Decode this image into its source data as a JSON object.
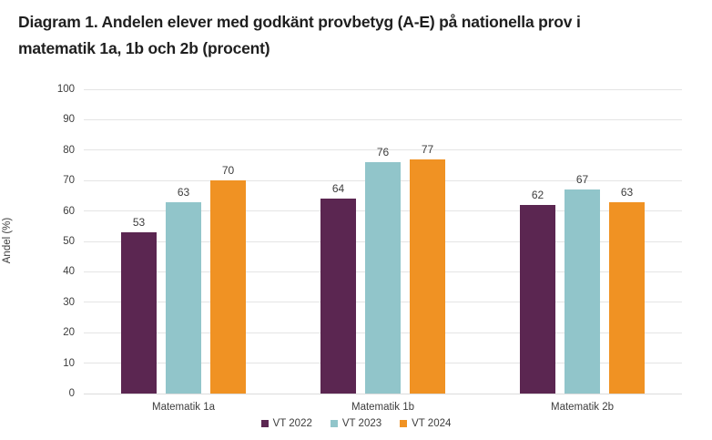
{
  "title": {
    "line1": "Diagram 1. Andelen elever med godkänt provbetyg (A-E) på nationella prov i",
    "line2": "matematik 1a, 1b och 2b (procent)"
  },
  "chart_data": {
    "type": "bar",
    "title": "Diagram 1. Andelen elever med godkänt provbetyg (A-E) på nationella prov i matematik 1a, 1b och 2b (procent)",
    "categories": [
      "Matematik 1a",
      "Matematik 1b",
      "Matematik 2b"
    ],
    "series": [
      {
        "name": "VT 2022",
        "color": "#5b2651",
        "values": [
          53,
          64,
          62
        ]
      },
      {
        "name": "VT 2023",
        "color": "#91c5ca",
        "values": [
          63,
          76,
          67
        ]
      },
      {
        "name": "VT 2024",
        "color": "#f09223",
        "values": [
          70,
          77,
          63
        ]
      }
    ],
    "xlabel": "",
    "ylabel": "Andel (%)",
    "ylim": [
      0,
      100
    ],
    "ytick_step": 10,
    "ytick_labels": [
      "0",
      "10",
      "20",
      "30",
      "40",
      "50",
      "60",
      "70",
      "80",
      "90",
      "100"
    ],
    "grid": true,
    "legend_position": "bottom",
    "value_labels": true
  },
  "colors": {
    "background": "#ffffff",
    "gridline": "#e4e4e4",
    "axis_text": "#3d3d3d",
    "title_text": "#1f1f1f"
  }
}
